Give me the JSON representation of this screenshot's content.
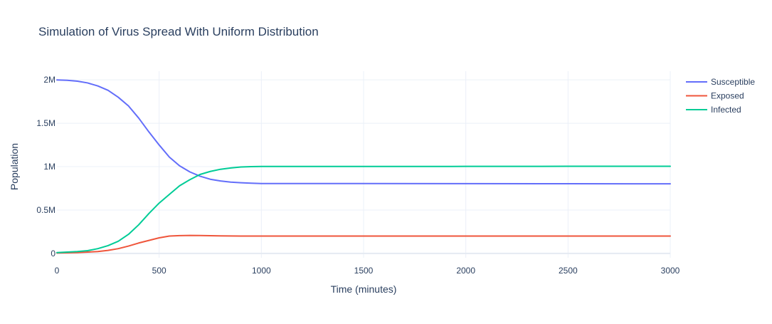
{
  "chart_data": {
    "type": "line",
    "title": "Simulation of Virus Spread With Uniform Distribution",
    "xlabel": "Time (minutes)",
    "ylabel": "Population",
    "xlim": [
      0,
      3000
    ],
    "ylim": [
      -50000,
      2100000
    ],
    "x_ticks": [
      0,
      500,
      1000,
      1500,
      2000,
      2500,
      3000
    ],
    "x_tick_labels": [
      "0",
      "500",
      "1000",
      "1500",
      "2000",
      "2500",
      "3000"
    ],
    "y_ticks": [
      0,
      500000,
      1000000,
      1500000,
      2000000
    ],
    "y_tick_labels": [
      "0",
      "0.5M",
      "1M",
      "1.5M",
      "2M"
    ],
    "grid": true,
    "legend_position": "top-right",
    "series": [
      {
        "name": "Susceptible",
        "color": "#636efa",
        "x": [
          0,
          50,
          100,
          150,
          200,
          250,
          300,
          350,
          400,
          450,
          500,
          550,
          600,
          650,
          700,
          750,
          800,
          850,
          900,
          950,
          1000,
          1500,
          2000,
          2500,
          3000
        ],
        "y": [
          2000000,
          1995000,
          1985000,
          1965000,
          1930000,
          1880000,
          1800000,
          1700000,
          1560000,
          1400000,
          1250000,
          1110000,
          1010000,
          940000,
          890000,
          855000,
          835000,
          822000,
          815000,
          810000,
          806000,
          805000,
          804000,
          803000,
          802000
        ]
      },
      {
        "name": "Exposed",
        "color": "#ef553b",
        "x": [
          0,
          100,
          200,
          250,
          300,
          350,
          400,
          450,
          500,
          550,
          600,
          650,
          700,
          750,
          800,
          850,
          900,
          1000,
          1500,
          2000,
          2500,
          3000
        ],
        "y": [
          5000,
          10000,
          22000,
          35000,
          55000,
          85000,
          120000,
          150000,
          180000,
          200000,
          205000,
          207000,
          206000,
          204000,
          202000,
          201000,
          200000,
          200000,
          200000,
          200000,
          200000,
          200000
        ]
      },
      {
        "name": "Infected",
        "color": "#00cc96",
        "x": [
          0,
          100,
          150,
          200,
          250,
          300,
          350,
          400,
          450,
          500,
          550,
          600,
          650,
          700,
          750,
          800,
          850,
          900,
          950,
          1000,
          1500,
          2000,
          2500,
          3000
        ],
        "y": [
          10000,
          22000,
          32000,
          55000,
          90000,
          140000,
          220000,
          330000,
          460000,
          580000,
          680000,
          780000,
          850000,
          910000,
          945000,
          970000,
          985000,
          996000,
          1000000,
          1002000,
          1002000,
          1003000,
          1004000,
          1005000
        ]
      }
    ]
  }
}
